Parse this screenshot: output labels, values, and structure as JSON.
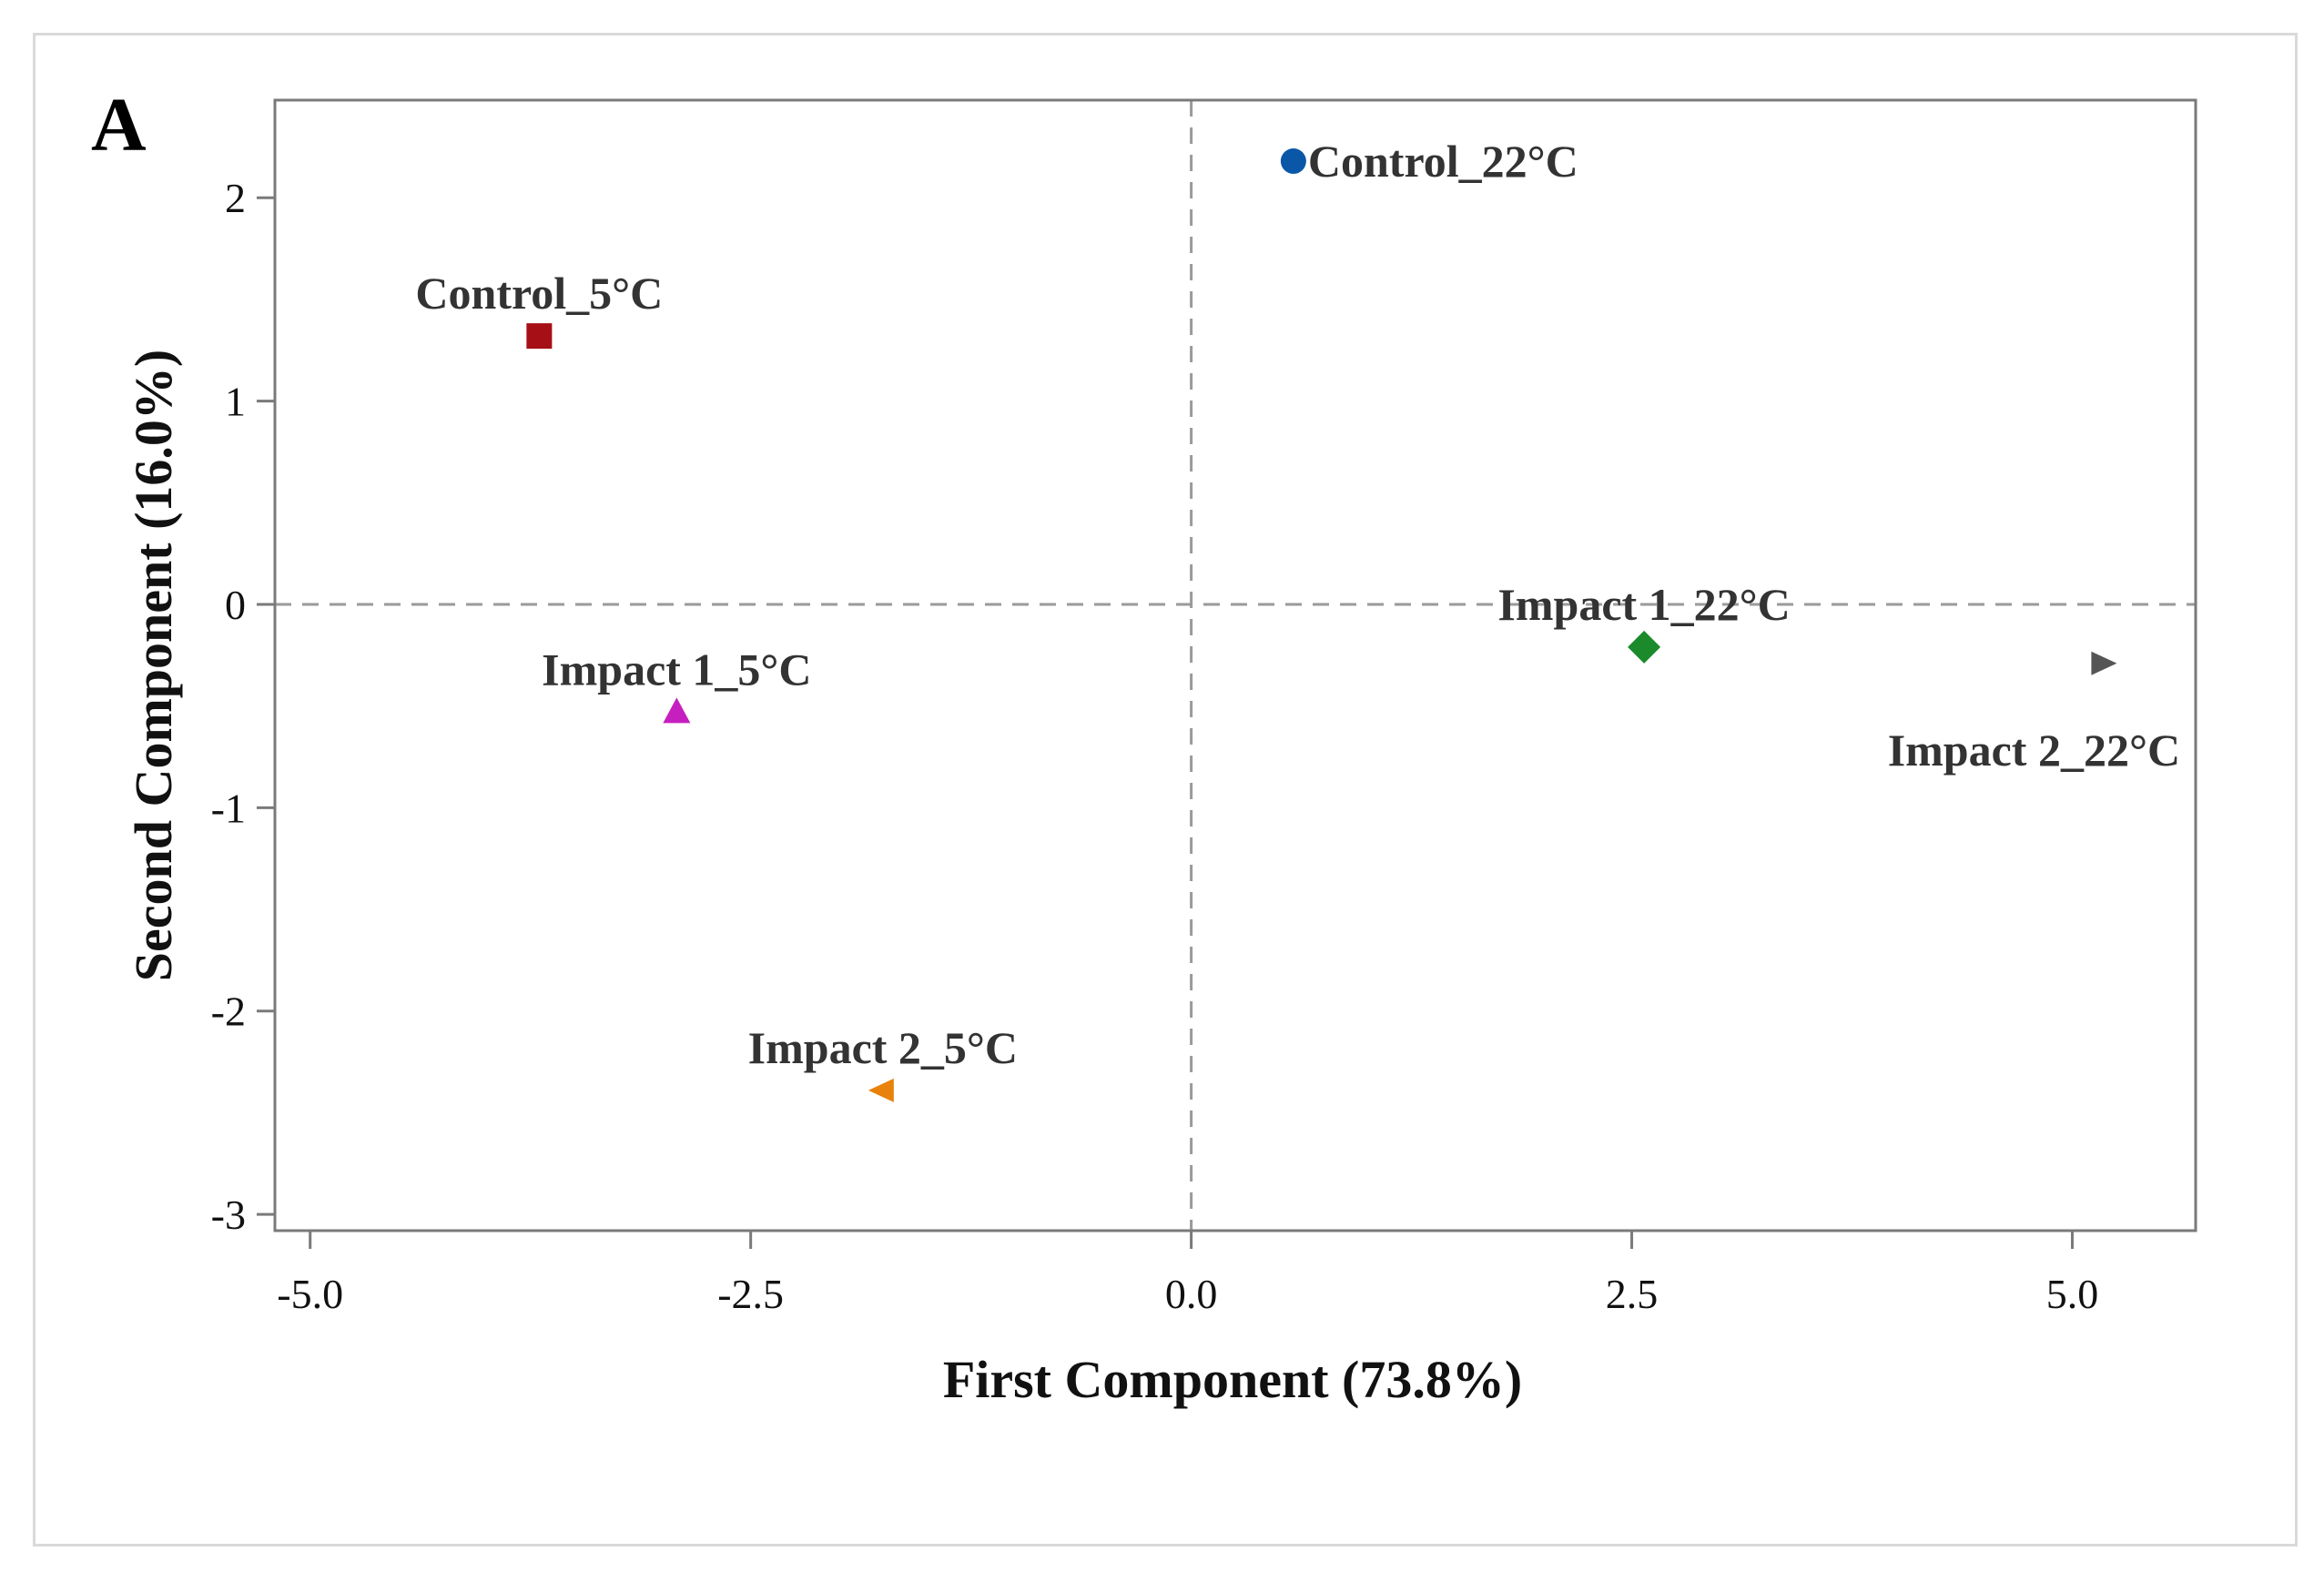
{
  "figure": {
    "panel_letter": "A"
  },
  "chart_data": {
    "type": "scatter",
    "title": "",
    "xlabel": "First Component (73.8%)",
    "ylabel": "Second Component (16.0%)",
    "xlim": [
      -5.2,
      5.7
    ],
    "ylim": [
      -3.08,
      2.48
    ],
    "xticks": [
      -5.0,
      -2.5,
      0.0,
      2.5,
      5.0
    ],
    "xtick_labels": [
      "-5.0",
      "-2.5",
      "0.0",
      "2.5",
      "5.0"
    ],
    "yticks": [
      -3,
      -2,
      -1,
      0,
      1,
      2
    ],
    "ytick_labels": [
      "-3",
      "-2",
      "-1",
      "0",
      "1",
      "2"
    ],
    "reference_lines": {
      "x": 0,
      "y": 0,
      "style": "dashed"
    },
    "grid": false,
    "legend": "none",
    "points": [
      {
        "name": "Control_22°C",
        "x": 0.58,
        "y": 2.18,
        "marker": "circle",
        "color": "#0a57a8",
        "label_anchor": "right"
      },
      {
        "name": "Control_5°C",
        "x": -3.7,
        "y": 1.32,
        "marker": "square",
        "color": "#a50f15",
        "label_anchor": "above"
      },
      {
        "name": "Impact 1_22°C",
        "x": 2.57,
        "y": -0.21,
        "marker": "diamond",
        "color": "#1a8a2a",
        "label_anchor": "above"
      },
      {
        "name": "Impact 1_5°C",
        "x": -2.92,
        "y": -0.53,
        "marker": "triangle-up",
        "color": "#c51fbf",
        "label_anchor": "above"
      },
      {
        "name": "Impact 2_22°C",
        "x": 5.17,
        "y": -0.29,
        "marker": "triangle-right",
        "color": "#555555",
        "label_anchor": "below-left"
      },
      {
        "name": "Impact 2_5°C",
        "x": -1.75,
        "y": -2.39,
        "marker": "triangle-left",
        "color": "#e8820c",
        "label_anchor": "above"
      }
    ]
  }
}
